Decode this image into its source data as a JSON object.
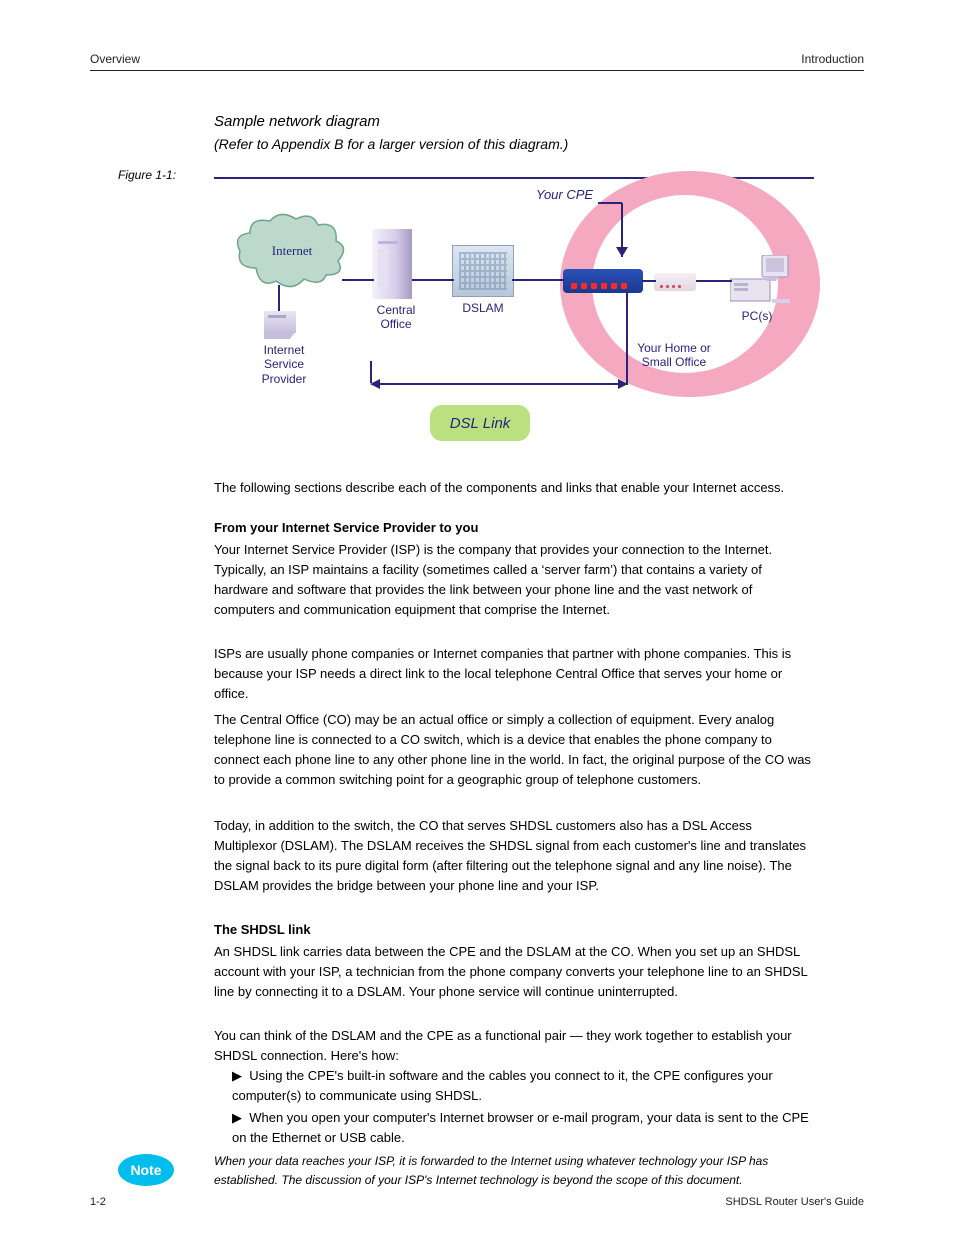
{
  "header_left": "Overview",
  "header_right": "Introduction",
  "page_number": "1-2",
  "doc_footer": "SHDSL Router User's Guide",
  "figure_caption_prefix": "Figure 1-1:",
  "figure_caption": "Sample network diagram",
  "figure_note": "(Refer to Appendix B for a larger version of this diagram.)",
  "lbl_internet": "Internet",
  "lbl_isp": "Internet Service\nProvider",
  "lbl_co": "Central Office",
  "lbl_dslam": "DSLAM",
  "lbl_your_cpe": "Your CPE",
  "lbl_your_home": "Your Home or\nSmall Office",
  "lbl_pcs": "PC(s)",
  "lbl_dsl_link": "DSL Link",
  "paragraphs": {
    "p1": "The following sections describe each of the components and links that enable your Internet access.",
    "h_isp": "From your Internet Service Provider to you",
    "p2": "Your Internet Service Provider (ISP) is the company that provides your connection to the Internet. Typically, an ISP maintains a facility (sometimes called a ‘server farm’) that contains a variety of hardware and software that provides the link between your phone line and the vast network of computers and communication equipment that comprise the Internet.",
    "p3": "ISPs are usually phone companies or Internet companies that partner with phone companies. This is because your ISP needs a direct link to the local telephone Central Office that serves your home or office.",
    "p4": "The Central Office (CO) may be an actual office or simply a collection of equipment. Every analog telephone line is connected to a CO switch, which is a device that enables the phone company to connect each phone line to any other phone line in the world. In fact, the original purpose of the CO was to provide a common switching point for a geographic group of telephone customers.",
    "p5": "Today, in addition to the switch, the CO that serves SHDSL customers also has a DSL Access Multiplexor (DSLAM). The DSLAM receives the SHDSL signal from each customer's line and translates the signal back to its pure digital form (after filtering out the telephone signal and any line noise). The DSLAM provides the bridge between your phone line and your ISP.",
    "h_dsl": "The SHDSL link",
    "p6": "An SHDSL link carries data between the CPE and the DSLAM at the CO. When you set up an SHDSL account with your ISP, a technician from the phone company converts your telephone line to an SHDSL line by connecting it to a DSLAM. Your phone service will continue uninterrupted.",
    "p7": "You can think of the DSLAM and the CPE as a functional pair — they work together to establish your SHDSL connection. Here's how:",
    "b1": "Using the CPE's built-in software and the cables you connect to it, the CPE configures your computer(s) to communicate using SHDSL.",
    "b2": "When you open your computer's Internet browser or e-mail program, your data is sent to the CPE on the Ethernet or USB cable.",
    "note_label": "Note",
    "note_text": "When your data reaches your ISP, it is forwarded to the Internet using whatever technology your ISP has established. The discussion of your ISP's Internet technology is beyond the scope of this document."
  },
  "colors": {
    "rule": "#28247a",
    "green_pill": "#bbe07f",
    "note_oval": "#00bdee",
    "ring_pink": "#f5a9c1"
  }
}
